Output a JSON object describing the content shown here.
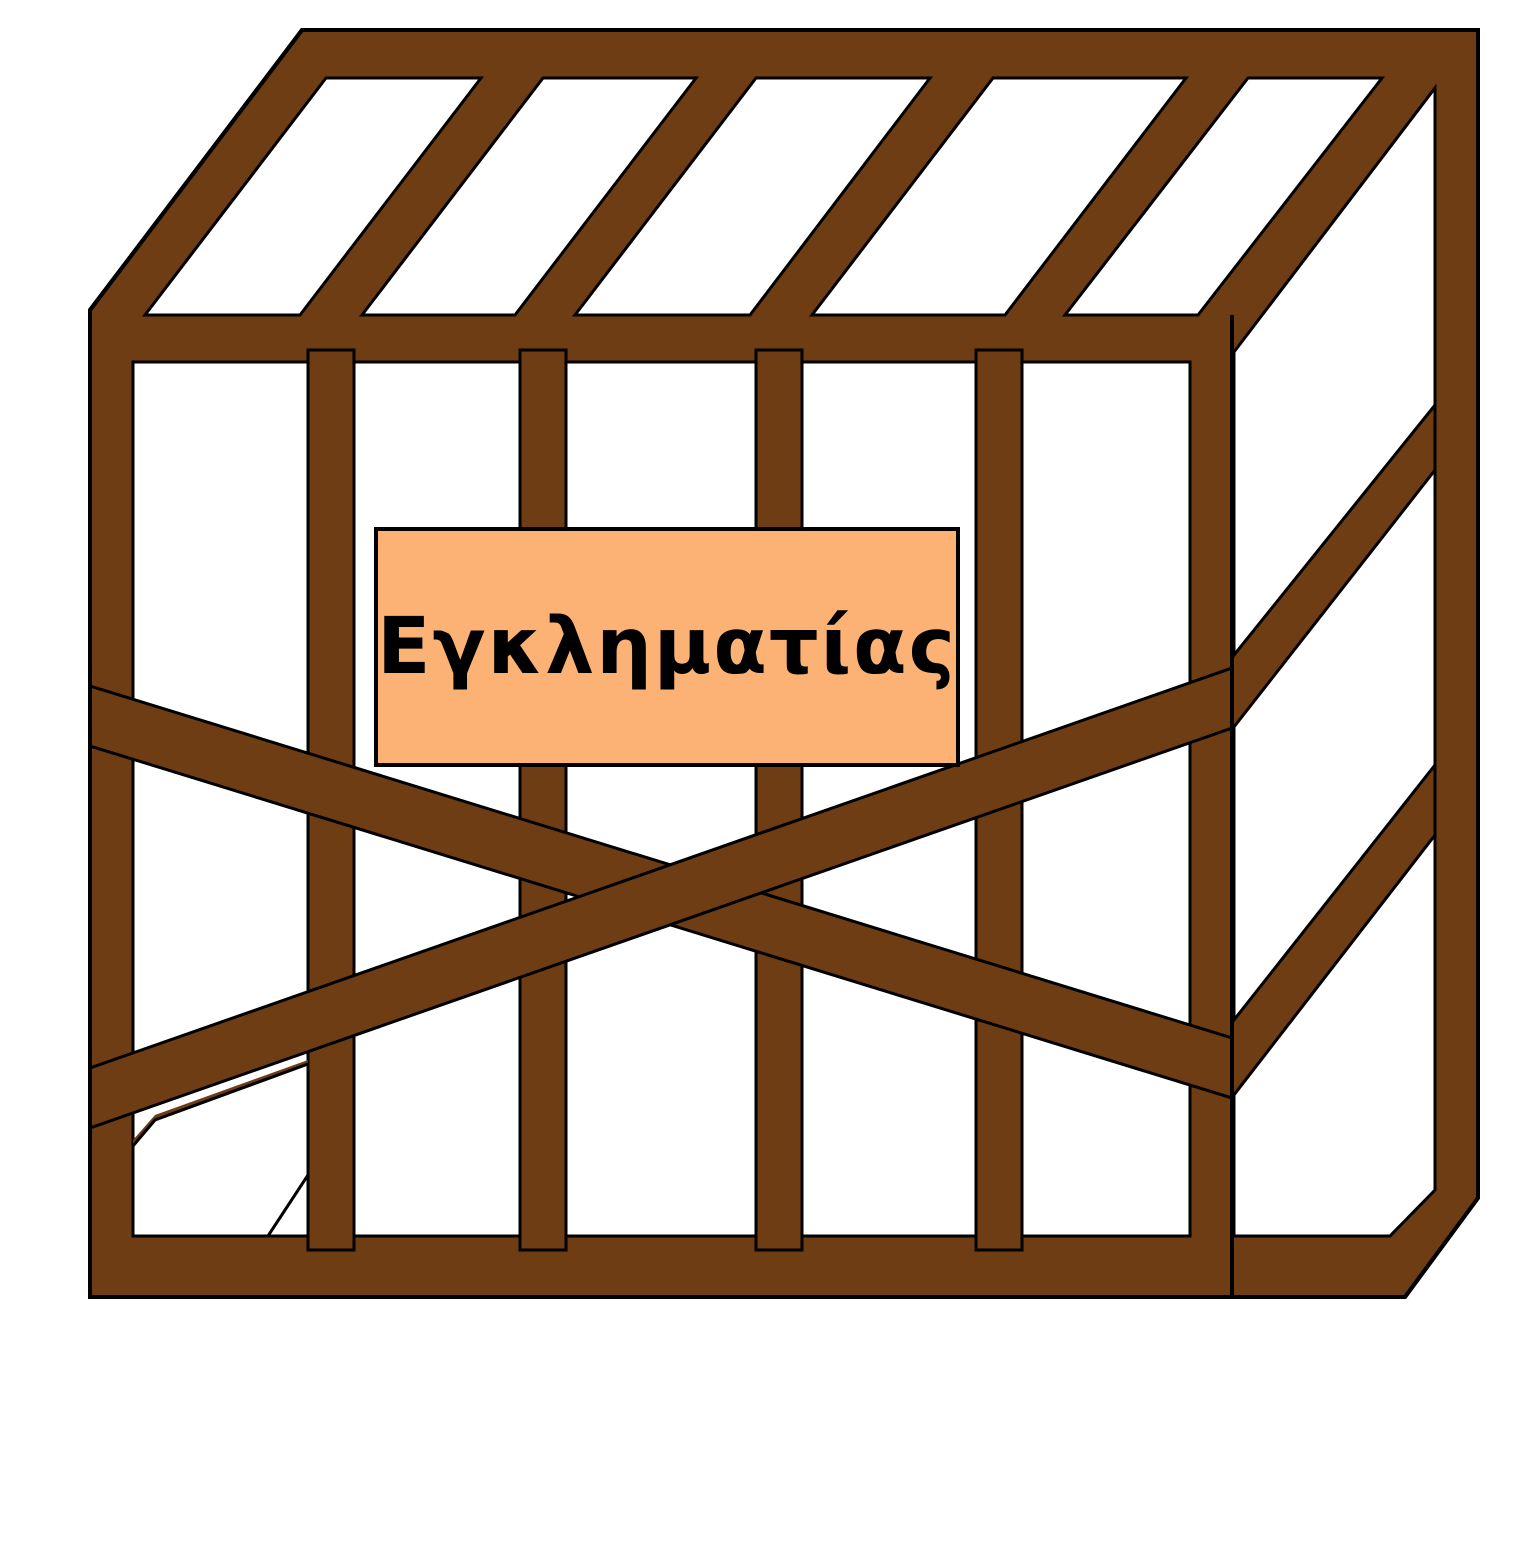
{
  "sign": {
    "label": "Εγκληματίας"
  },
  "colors": {
    "wood": "#6E3D14",
    "outline": "#000000",
    "sign_fill": "#FDB275",
    "background": "#FFFFFF"
  },
  "icons": {
    "cage": "wooden-cage-icon"
  }
}
